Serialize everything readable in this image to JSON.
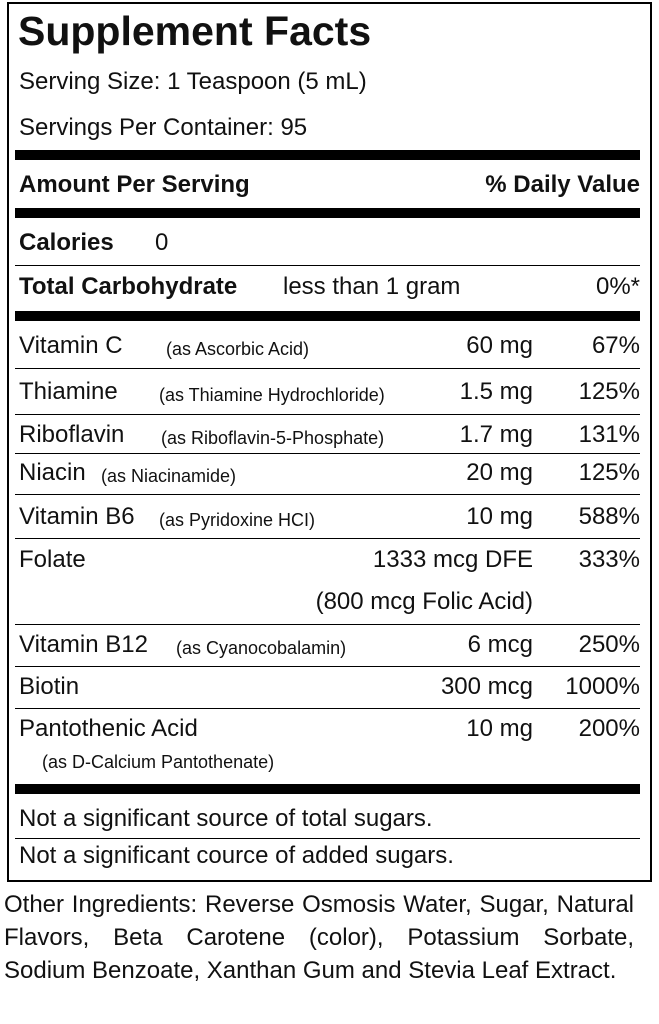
{
  "title": "Supplement Facts",
  "serving_size": "Serving Size:  1 Teaspoon (5 mL)",
  "servings_per_container": "Servings Per Container:  95",
  "header": {
    "amount": "Amount Per Serving",
    "daily_value": "% Daily Value"
  },
  "calories": {
    "label": "Calories",
    "value": "0"
  },
  "total_carbohydrate": {
    "label": "Total Carbohydrate",
    "amount": "less than 1 gram",
    "daily_value": "0%*"
  },
  "nutrients": [
    {
      "name": "Vitamin C",
      "source": "(as Ascorbic Acid)",
      "amount": "60 mg",
      "daily_value": "67%"
    },
    {
      "name": "Thiamine",
      "source": "(as Thiamine Hydrochloride)",
      "amount": "1.5 mg",
      "daily_value": "125%"
    },
    {
      "name": "Riboflavin",
      "source": "(as Riboflavin-5-Phosphate)",
      "amount": "1.7 mg",
      "daily_value": "131%"
    },
    {
      "name": "Niacin",
      "source": "(as Niacinamide)",
      "amount": "20 mg",
      "daily_value": "125%"
    },
    {
      "name": "Vitamin B6",
      "source": "(as Pyridoxine HCI)",
      "amount": "10 mg",
      "daily_value": "588%"
    },
    {
      "name": "Folate",
      "amount": "1333 mcg DFE",
      "amount_note": "(800 mcg Folic Acid)",
      "daily_value": "333%"
    },
    {
      "name": "Vitamin B12",
      "source": "(as Cyanocobalamin)",
      "amount": "6 mcg",
      "daily_value": "250%"
    },
    {
      "name": "Biotin",
      "amount": "300 mcg",
      "daily_value": "1000%"
    },
    {
      "name": "Pantothenic Acid",
      "source": "(as D-Calcium Pantothenate)",
      "amount": "10 mg",
      "daily_value": "200%"
    }
  ],
  "footnotes": [
    "Not a significant source of total sugars.",
    "Not a significant cource of added sugars."
  ],
  "other_ingredients": "Other Ingredients: Reverse Osmosis Water, Sugar, Natural Flavors, Beta Carotene (color), Potassium Sorbate, Sodium Benzoate, Xanthan Gum and Stevia Leaf Extract."
}
